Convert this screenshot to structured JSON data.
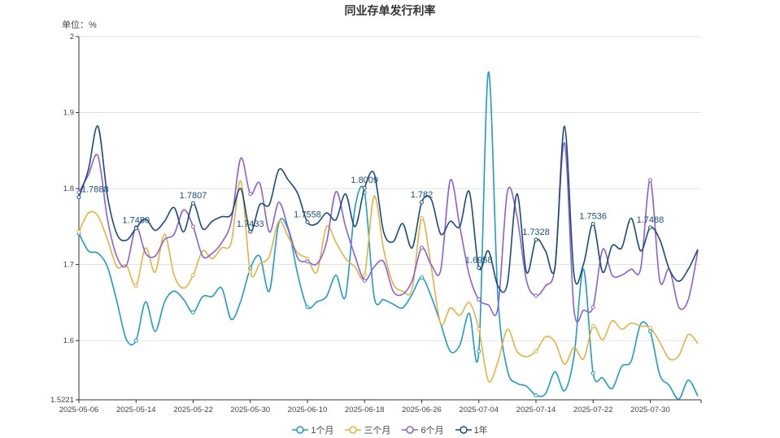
{
  "chart_data": {
    "type": "line",
    "title": "同业存单发行利率",
    "unit_label": "单位：%",
    "smooth": true,
    "grid": "horizontal",
    "legend_position": "bottom",
    "ylim": [
      1.5221,
      2
    ],
    "yticks": [
      "1.5221",
      "1.6",
      "1.7",
      "1.8",
      "1.9",
      "2"
    ],
    "xtick_labels": [
      "2025-05-06",
      "2025-05-14",
      "2025-05-22",
      "2025-05-30",
      "2025-06-10",
      "2025-06-18",
      "2025-06-26",
      "2025-07-04",
      "2025-07-14",
      "2025-07-22",
      "2025-07-30"
    ],
    "x": [
      "2025-05-06",
      "2025-05-07",
      "2025-05-08",
      "2025-05-09",
      "2025-05-12",
      "2025-05-13",
      "2025-05-14",
      "2025-05-15",
      "2025-05-16",
      "2025-05-19",
      "2025-05-20",
      "2025-05-21",
      "2025-05-22",
      "2025-05-23",
      "2025-05-26",
      "2025-05-27",
      "2025-05-28",
      "2025-05-29",
      "2025-05-30",
      "2025-06-03",
      "2025-06-04",
      "2025-06-05",
      "2025-06-06",
      "2025-06-09",
      "2025-06-10",
      "2025-06-11",
      "2025-06-12",
      "2025-06-13",
      "2025-06-16",
      "2025-06-17",
      "2025-06-18",
      "2025-06-19",
      "2025-06-20",
      "2025-06-23",
      "2025-06-24",
      "2025-06-25",
      "2025-06-26",
      "2025-06-27",
      "2025-06-30",
      "2025-07-01",
      "2025-07-02",
      "2025-07-03",
      "2025-07-04",
      "2025-07-07",
      "2025-07-08",
      "2025-07-09",
      "2025-07-10",
      "2025-07-11",
      "2025-07-14",
      "2025-07-15",
      "2025-07-16",
      "2025-07-17",
      "2025-07-18",
      "2025-07-21",
      "2025-07-22",
      "2025-07-23",
      "2025-07-24",
      "2025-07-25",
      "2025-07-28",
      "2025-07-29",
      "2025-07-30",
      "2025-07-31",
      "2025-08-01",
      "2025-08-04",
      "2025-08-05",
      "2025-08-06"
    ],
    "series": [
      {
        "name": "1个月",
        "color": "#1f9bc6",
        "values": [
          1.741,
          1.718,
          1.715,
          1.697,
          1.651,
          1.601,
          1.6,
          1.651,
          1.612,
          1.651,
          1.665,
          1.654,
          1.637,
          1.658,
          1.658,
          1.669,
          1.628,
          1.652,
          1.695,
          1.711,
          1.665,
          1.755,
          1.745,
          1.686,
          1.644,
          1.651,
          1.658,
          1.686,
          1.658,
          1.775,
          1.795,
          1.658,
          1.654,
          1.648,
          1.643,
          1.661,
          1.683,
          1.658,
          1.622,
          1.586,
          1.594,
          1.636,
          1.586,
          1.953,
          1.658,
          1.561,
          1.544,
          1.54,
          1.528,
          1.53,
          1.559,
          1.534,
          1.58,
          1.694,
          1.557,
          1.551,
          1.537,
          1.566,
          1.573,
          1.622,
          1.612,
          1.555,
          1.541,
          1.523,
          1.548,
          1.527
        ]
      },
      {
        "name": "三个月",
        "color": "#e3b247",
        "values": [
          1.743,
          1.768,
          1.764,
          1.733,
          1.697,
          1.699,
          1.672,
          1.722,
          1.69,
          1.74,
          1.686,
          1.669,
          1.686,
          1.718,
          1.708,
          1.722,
          1.729,
          1.81,
          1.69,
          1.701,
          1.711,
          1.757,
          1.736,
          1.715,
          1.708,
          1.69,
          1.75,
          1.729,
          1.708,
          1.697,
          1.686,
          1.79,
          1.72,
          1.675,
          1.665,
          1.668,
          1.761,
          1.697,
          1.622,
          1.643,
          1.633,
          1.65,
          1.615,
          1.547,
          1.572,
          1.615,
          1.586,
          1.579,
          1.586,
          1.605,
          1.598,
          1.569,
          1.591,
          1.576,
          1.619,
          1.601,
          1.626,
          1.615,
          1.623,
          1.619,
          1.617,
          1.598,
          1.576,
          1.58,
          1.608,
          1.596
        ]
      },
      {
        "name": "6个月",
        "color": "#8b5fd8",
        "values": [
          1.795,
          1.818,
          1.843,
          1.76,
          1.71,
          1.699,
          1.749,
          1.715,
          1.711,
          1.733,
          1.74,
          1.772,
          1.75,
          1.711,
          1.715,
          1.729,
          1.757,
          1.84,
          1.793,
          1.807,
          1.743,
          1.782,
          1.747,
          1.708,
          1.704,
          1.701,
          1.729,
          1.796,
          1.75,
          1.711,
          1.679,
          1.697,
          1.704,
          1.665,
          1.661,
          1.679,
          1.722,
          1.7,
          1.693,
          1.811,
          1.75,
          1.686,
          1.654,
          1.647,
          1.643,
          1.796,
          1.764,
          1.679,
          1.659,
          1.672,
          1.697,
          1.86,
          1.64,
          1.64,
          1.644,
          1.72,
          1.686,
          1.686,
          1.694,
          1.695,
          1.811,
          1.679,
          1.694,
          1.644,
          1.654,
          1.718
        ]
      },
      {
        "name": "1年",
        "color": "#1b4a7a",
        "values": [
          1.7888,
          1.825,
          1.882,
          1.79,
          1.74,
          1.732,
          1.748,
          1.76,
          1.745,
          1.757,
          1.775,
          1.743,
          1.7807,
          1.747,
          1.757,
          1.763,
          1.766,
          1.8,
          1.7433,
          1.779,
          1.779,
          1.825,
          1.811,
          1.793,
          1.7558,
          1.754,
          1.768,
          1.759,
          1.793,
          1.75,
          1.8009,
          1.82,
          1.743,
          1.73,
          1.754,
          1.722,
          1.782,
          1.786,
          1.74,
          1.757,
          1.75,
          1.796,
          1.6958,
          1.718,
          1.672,
          1.675,
          1.793,
          1.69,
          1.7328,
          1.718,
          1.697,
          1.882,
          1.686,
          1.701,
          1.7536,
          1.69,
          1.725,
          1.722,
          1.761,
          1.718,
          1.7488,
          1.733,
          1.694,
          1.678,
          1.694,
          1.72
        ]
      }
    ],
    "data_labels": {
      "series": "1年",
      "every": 6,
      "labels": [
        "1.7888",
        "1.7480",
        "1.7807",
        "1.7433",
        "1.7558",
        "1.8009",
        "1.782",
        "1.6958",
        "1.7328",
        "1.7536",
        "1.7488"
      ]
    }
  }
}
